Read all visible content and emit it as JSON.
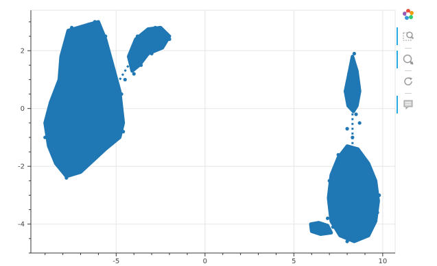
{
  "chart_data": {
    "type": "scatter",
    "title": "",
    "xlabel": "",
    "ylabel": "",
    "xlim": [
      -9.8,
      10.7
    ],
    "ylim": [
      -5.0,
      3.4
    ],
    "x_ticks": [
      -5,
      0,
      5,
      10
    ],
    "y_ticks": [
      -4,
      -2,
      0,
      2
    ],
    "x_tick_labels": [
      "-5",
      "0",
      "5",
      "10"
    ],
    "y_tick_labels": [
      "-4",
      "-2",
      "0",
      "2"
    ],
    "grid": true,
    "legend": "none",
    "marker_color": "#1f77b4",
    "series": [
      {
        "values": [
          [
            -7.5,
            2.8
          ],
          [
            -6.2,
            3.0
          ],
          [
            -8.0,
            1.5
          ],
          [
            -8.5,
            0.0
          ],
          [
            -9.0,
            -1.0
          ],
          [
            -8.4,
            -1.8
          ],
          [
            -7.8,
            -2.4
          ],
          [
            -6.9,
            -2.1
          ],
          [
            -5.6,
            -1.2
          ],
          [
            -4.6,
            -0.8
          ],
          [
            -4.7,
            0.5
          ],
          [
            -5.3,
            1.5
          ],
          [
            -5.6,
            2.5
          ],
          [
            -6.5,
            1.0
          ],
          [
            -7.0,
            0.0
          ],
          [
            -6.8,
            -1.0
          ],
          [
            -6.0,
            -0.2
          ],
          [
            -7.4,
            1.8
          ],
          [
            -4.2,
            1.8
          ],
          [
            -3.8,
            2.5
          ],
          [
            -2.8,
            2.8
          ],
          [
            -2.0,
            2.4
          ],
          [
            -3.0,
            1.9
          ],
          [
            -3.6,
            1.5
          ],
          [
            -4.0,
            1.2
          ],
          [
            -4.5,
            1.0
          ],
          [
            -3.3,
            2.2
          ],
          [
            8.4,
            1.9
          ],
          [
            8.1,
            1.2
          ],
          [
            8.6,
            0.8
          ],
          [
            7.9,
            0.6
          ],
          [
            8.3,
            0.2
          ],
          [
            8.5,
            -0.2
          ],
          [
            8.0,
            -0.7
          ],
          [
            8.7,
            -0.5
          ],
          [
            8.3,
            -1.0
          ],
          [
            8.2,
            -1.4
          ],
          [
            7.5,
            -1.6
          ],
          [
            8.9,
            -1.9
          ],
          [
            7.6,
            -2.0
          ],
          [
            9.3,
            -2.4
          ],
          [
            7.0,
            -2.5
          ],
          [
            9.8,
            -3.0
          ],
          [
            7.1,
            -3.3
          ],
          [
            9.7,
            -3.6
          ],
          [
            7.2,
            -4.1
          ],
          [
            8.0,
            -4.6
          ],
          [
            9.2,
            -4.2
          ],
          [
            8.5,
            -3.0
          ],
          [
            8.2,
            -2.4
          ],
          [
            7.8,
            -3.6
          ],
          [
            6.2,
            -4.0
          ],
          [
            6.0,
            -4.15
          ],
          [
            6.6,
            -4.3
          ],
          [
            6.9,
            -3.8
          ],
          [
            9.0,
            -3.4
          ],
          [
            8.8,
            -4.4
          ]
        ]
      }
    ]
  }
}
